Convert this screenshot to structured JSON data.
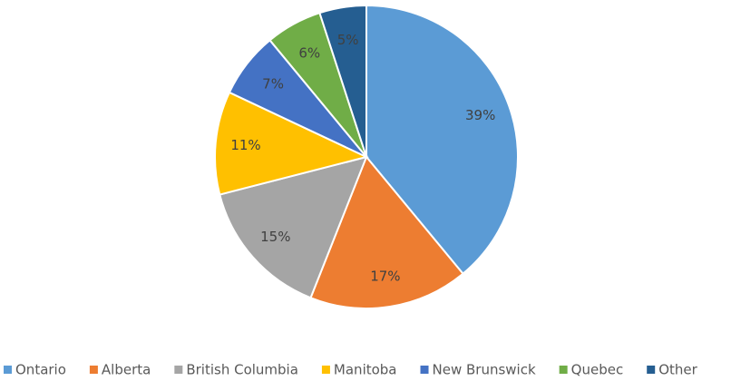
{
  "chart_data": {
    "type": "pie",
    "categories": [
      "Ontario",
      "Alberta",
      "British Columbia",
      "Manitoba",
      "New Brunswick",
      "Quebec",
      "Other"
    ],
    "values": [
      39,
      17,
      15,
      11,
      7,
      6,
      5
    ],
    "value_labels": [
      "39%",
      "17%",
      "15%",
      "11%",
      "7%",
      "6%",
      "5%"
    ],
    "colors": [
      "#5b9bd5",
      "#ed7d31",
      "#a5a5a5",
      "#ffc000",
      "#4472c4",
      "#70ad47",
      "#255e91"
    ],
    "legend": "bottom"
  }
}
